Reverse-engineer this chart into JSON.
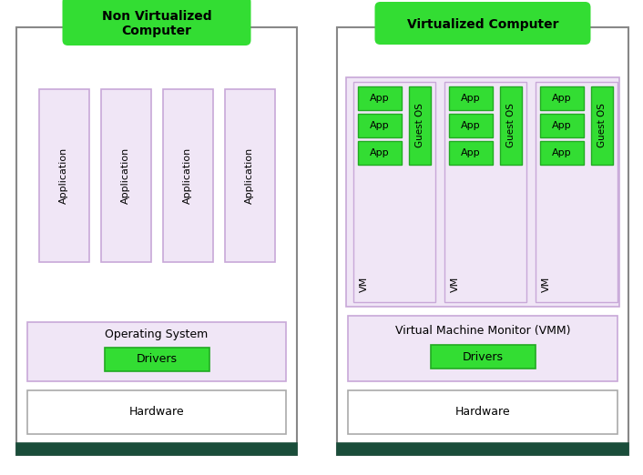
{
  "fig_width": 7.06,
  "fig_height": 5.22,
  "dpi": 100,
  "bg_color": "#ffffff",
  "green_bright": "#33dd33",
  "green_dark": "#1a4d3a",
  "lavender": "#f0e6f6",
  "lavender_border": "#c8a8d8",
  "green_box": "#33dd33",
  "green_box_border": "#22aa22",
  "outer_border": "#888888",
  "hw_border": "#aaaaaa",
  "left_title": "Non Virtualized\nComputer",
  "right_title": "Virtualized Computer",
  "left_apps": [
    "Application",
    "Application",
    "Application",
    "Application"
  ],
  "left_os_label": "Operating System",
  "left_drivers_label": "Drivers",
  "left_hw_label": "Hardware",
  "right_vm_label": "VM",
  "right_app_label": "App",
  "right_guestos_label": "Guest OS",
  "right_vmm_label": "Virtual Machine Monitor (VMM)",
  "right_drivers_label": "Drivers",
  "right_hw_label": "Hardware"
}
